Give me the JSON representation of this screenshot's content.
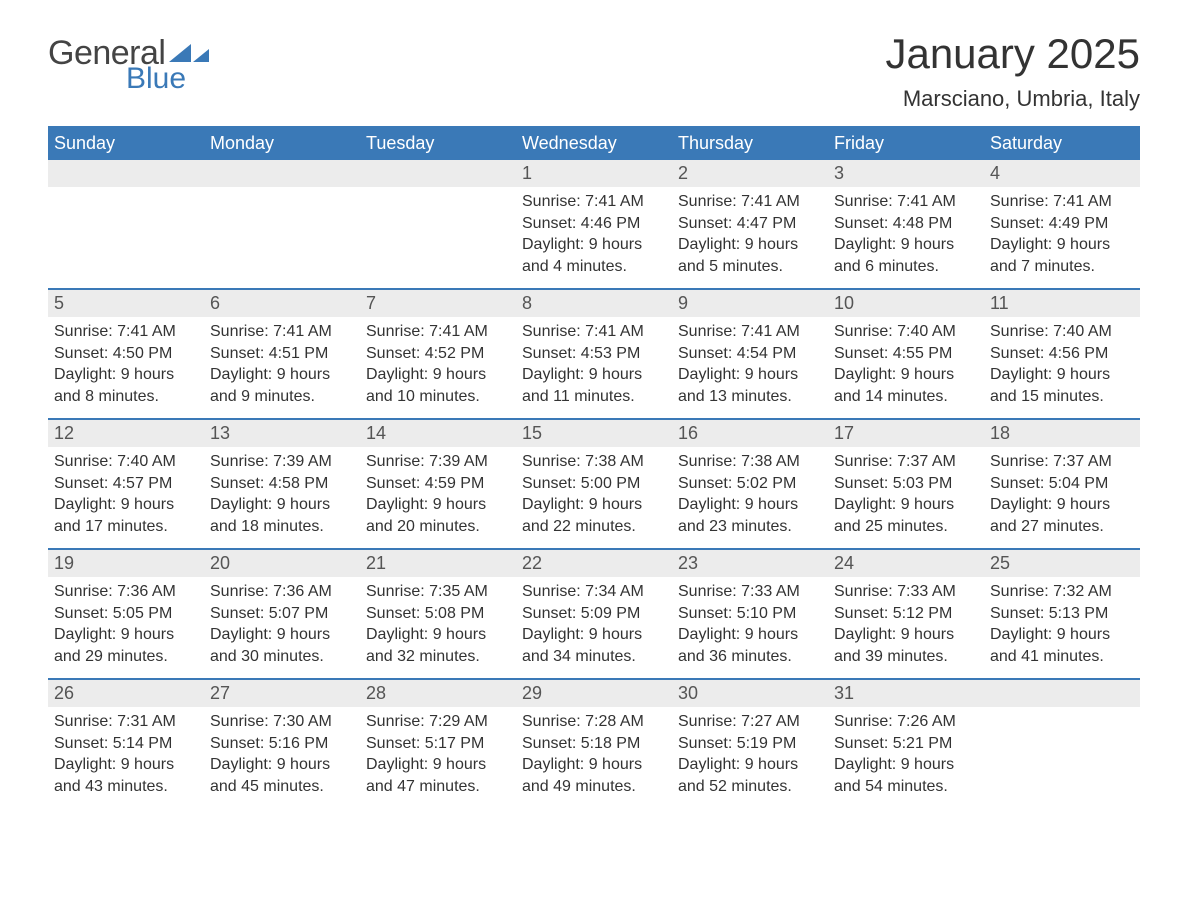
{
  "brand": {
    "name_part1": "General",
    "name_part2": "Blue",
    "text_color": "#444444",
    "accent_color": "#3a79b7"
  },
  "title": "January 2025",
  "location": "Marsciano, Umbria, Italy",
  "styling": {
    "header_bg": "#3a79b7",
    "header_text": "#ffffff",
    "daynum_bg": "#ececec",
    "daynum_text": "#555555",
    "body_text": "#333333",
    "week_border": "#3a79b7",
    "title_fontsize": 42,
    "location_fontsize": 22,
    "dow_fontsize": 18,
    "daynum_fontsize": 18,
    "body_fontsize": 16
  },
  "days_of_week": [
    "Sunday",
    "Monday",
    "Tuesday",
    "Wednesday",
    "Thursday",
    "Friday",
    "Saturday"
  ],
  "weeks": [
    [
      {
        "blank": true
      },
      {
        "blank": true
      },
      {
        "blank": true
      },
      {
        "day": "1",
        "sunrise": "Sunrise: 7:41 AM",
        "sunset": "Sunset: 4:46 PM",
        "daylight": "Daylight: 9 hours and 4 minutes."
      },
      {
        "day": "2",
        "sunrise": "Sunrise: 7:41 AM",
        "sunset": "Sunset: 4:47 PM",
        "daylight": "Daylight: 9 hours and 5 minutes."
      },
      {
        "day": "3",
        "sunrise": "Sunrise: 7:41 AM",
        "sunset": "Sunset: 4:48 PM",
        "daylight": "Daylight: 9 hours and 6 minutes."
      },
      {
        "day": "4",
        "sunrise": "Sunrise: 7:41 AM",
        "sunset": "Sunset: 4:49 PM",
        "daylight": "Daylight: 9 hours and 7 minutes."
      }
    ],
    [
      {
        "day": "5",
        "sunrise": "Sunrise: 7:41 AM",
        "sunset": "Sunset: 4:50 PM",
        "daylight": "Daylight: 9 hours and 8 minutes."
      },
      {
        "day": "6",
        "sunrise": "Sunrise: 7:41 AM",
        "sunset": "Sunset: 4:51 PM",
        "daylight": "Daylight: 9 hours and 9 minutes."
      },
      {
        "day": "7",
        "sunrise": "Sunrise: 7:41 AM",
        "sunset": "Sunset: 4:52 PM",
        "daylight": "Daylight: 9 hours and 10 minutes."
      },
      {
        "day": "8",
        "sunrise": "Sunrise: 7:41 AM",
        "sunset": "Sunset: 4:53 PM",
        "daylight": "Daylight: 9 hours and 11 minutes."
      },
      {
        "day": "9",
        "sunrise": "Sunrise: 7:41 AM",
        "sunset": "Sunset: 4:54 PM",
        "daylight": "Daylight: 9 hours and 13 minutes."
      },
      {
        "day": "10",
        "sunrise": "Sunrise: 7:40 AM",
        "sunset": "Sunset: 4:55 PM",
        "daylight": "Daylight: 9 hours and 14 minutes."
      },
      {
        "day": "11",
        "sunrise": "Sunrise: 7:40 AM",
        "sunset": "Sunset: 4:56 PM",
        "daylight": "Daylight: 9 hours and 15 minutes."
      }
    ],
    [
      {
        "day": "12",
        "sunrise": "Sunrise: 7:40 AM",
        "sunset": "Sunset: 4:57 PM",
        "daylight": "Daylight: 9 hours and 17 minutes."
      },
      {
        "day": "13",
        "sunrise": "Sunrise: 7:39 AM",
        "sunset": "Sunset: 4:58 PM",
        "daylight": "Daylight: 9 hours and 18 minutes."
      },
      {
        "day": "14",
        "sunrise": "Sunrise: 7:39 AM",
        "sunset": "Sunset: 4:59 PM",
        "daylight": "Daylight: 9 hours and 20 minutes."
      },
      {
        "day": "15",
        "sunrise": "Sunrise: 7:38 AM",
        "sunset": "Sunset: 5:00 PM",
        "daylight": "Daylight: 9 hours and 22 minutes."
      },
      {
        "day": "16",
        "sunrise": "Sunrise: 7:38 AM",
        "sunset": "Sunset: 5:02 PM",
        "daylight": "Daylight: 9 hours and 23 minutes."
      },
      {
        "day": "17",
        "sunrise": "Sunrise: 7:37 AM",
        "sunset": "Sunset: 5:03 PM",
        "daylight": "Daylight: 9 hours and 25 minutes."
      },
      {
        "day": "18",
        "sunrise": "Sunrise: 7:37 AM",
        "sunset": "Sunset: 5:04 PM",
        "daylight": "Daylight: 9 hours and 27 minutes."
      }
    ],
    [
      {
        "day": "19",
        "sunrise": "Sunrise: 7:36 AM",
        "sunset": "Sunset: 5:05 PM",
        "daylight": "Daylight: 9 hours and 29 minutes."
      },
      {
        "day": "20",
        "sunrise": "Sunrise: 7:36 AM",
        "sunset": "Sunset: 5:07 PM",
        "daylight": "Daylight: 9 hours and 30 minutes."
      },
      {
        "day": "21",
        "sunrise": "Sunrise: 7:35 AM",
        "sunset": "Sunset: 5:08 PM",
        "daylight": "Daylight: 9 hours and 32 minutes."
      },
      {
        "day": "22",
        "sunrise": "Sunrise: 7:34 AM",
        "sunset": "Sunset: 5:09 PM",
        "daylight": "Daylight: 9 hours and 34 minutes."
      },
      {
        "day": "23",
        "sunrise": "Sunrise: 7:33 AM",
        "sunset": "Sunset: 5:10 PM",
        "daylight": "Daylight: 9 hours and 36 minutes."
      },
      {
        "day": "24",
        "sunrise": "Sunrise: 7:33 AM",
        "sunset": "Sunset: 5:12 PM",
        "daylight": "Daylight: 9 hours and 39 minutes."
      },
      {
        "day": "25",
        "sunrise": "Sunrise: 7:32 AM",
        "sunset": "Sunset: 5:13 PM",
        "daylight": "Daylight: 9 hours and 41 minutes."
      }
    ],
    [
      {
        "day": "26",
        "sunrise": "Sunrise: 7:31 AM",
        "sunset": "Sunset: 5:14 PM",
        "daylight": "Daylight: 9 hours and 43 minutes."
      },
      {
        "day": "27",
        "sunrise": "Sunrise: 7:30 AM",
        "sunset": "Sunset: 5:16 PM",
        "daylight": "Daylight: 9 hours and 45 minutes."
      },
      {
        "day": "28",
        "sunrise": "Sunrise: 7:29 AM",
        "sunset": "Sunset: 5:17 PM",
        "daylight": "Daylight: 9 hours and 47 minutes."
      },
      {
        "day": "29",
        "sunrise": "Sunrise: 7:28 AM",
        "sunset": "Sunset: 5:18 PM",
        "daylight": "Daylight: 9 hours and 49 minutes."
      },
      {
        "day": "30",
        "sunrise": "Sunrise: 7:27 AM",
        "sunset": "Sunset: 5:19 PM",
        "daylight": "Daylight: 9 hours and 52 minutes."
      },
      {
        "day": "31",
        "sunrise": "Sunrise: 7:26 AM",
        "sunset": "Sunset: 5:21 PM",
        "daylight": "Daylight: 9 hours and 54 minutes."
      },
      {
        "blank": true
      }
    ]
  ]
}
